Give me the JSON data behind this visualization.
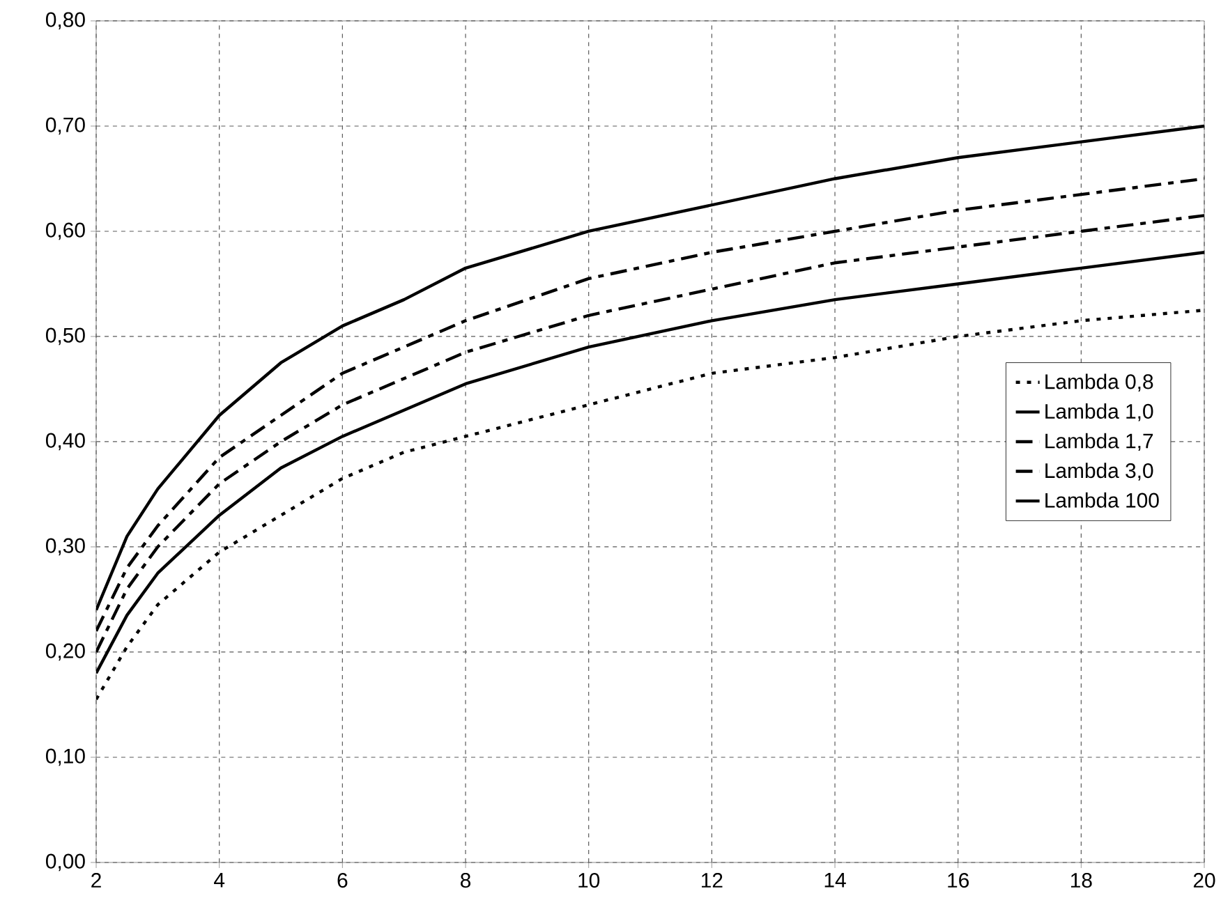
{
  "chart_data": {
    "type": "line",
    "x": [
      2,
      2.5,
      3,
      4,
      5,
      6,
      7,
      8,
      10,
      12,
      14,
      16,
      18,
      20
    ],
    "xlim": [
      2,
      20
    ],
    "xticks": [
      2,
      4,
      6,
      8,
      10,
      12,
      14,
      16,
      18,
      20
    ],
    "ylim": [
      0,
      0.8
    ],
    "yticks": [
      {
        "value": 0,
        "label": "0,00"
      },
      {
        "value": 0.1,
        "label": "0,10"
      },
      {
        "value": 0.2,
        "label": "0,20"
      },
      {
        "value": 0.3,
        "label": "0,30"
      },
      {
        "value": 0.4,
        "label": "0,40"
      },
      {
        "value": 0.5,
        "label": "0,50"
      },
      {
        "value": 0.6,
        "label": "0,60"
      },
      {
        "value": 0.7,
        "label": "0,70"
      },
      {
        "value": 0.8,
        "label": "0,80"
      }
    ],
    "grid": true,
    "legend": "right",
    "marker": "none",
    "series": [
      {
        "name": "Lambda 0,8",
        "color": "#000000",
        "line_style": "dotted",
        "values": [
          0.155,
          0.205,
          0.245,
          0.295,
          0.33,
          0.365,
          0.39,
          0.405,
          0.435,
          0.465,
          0.48,
          0.5,
          0.515,
          0.525
        ]
      },
      {
        "name": "Lambda 1,0",
        "color": "#000000",
        "line_style": "solid",
        "values": [
          0.18,
          0.235,
          0.275,
          0.33,
          0.375,
          0.405,
          0.43,
          0.455,
          0.49,
          0.515,
          0.535,
          0.55,
          0.565,
          0.58
        ]
      },
      {
        "name": "Lambda 1,7",
        "color": "#000000",
        "line_style": "dashed",
        "values": [
          0.2,
          0.26,
          0.3,
          0.36,
          0.4,
          0.435,
          0.46,
          0.485,
          0.52,
          0.545,
          0.57,
          0.585,
          0.6,
          0.615
        ]
      },
      {
        "name": "Lambda 3,0",
        "color": "#000000",
        "line_style": "dashed",
        "values": [
          0.22,
          0.28,
          0.32,
          0.385,
          0.425,
          0.465,
          0.49,
          0.515,
          0.555,
          0.58,
          0.6,
          0.62,
          0.635,
          0.65
        ]
      },
      {
        "name": "Lambda 100",
        "color": "#000000",
        "line_style": "solid",
        "values": [
          0.24,
          0.31,
          0.355,
          0.425,
          0.475,
          0.51,
          0.535,
          0.565,
          0.6,
          0.625,
          0.65,
          0.67,
          0.685,
          0.7
        ]
      }
    ]
  }
}
